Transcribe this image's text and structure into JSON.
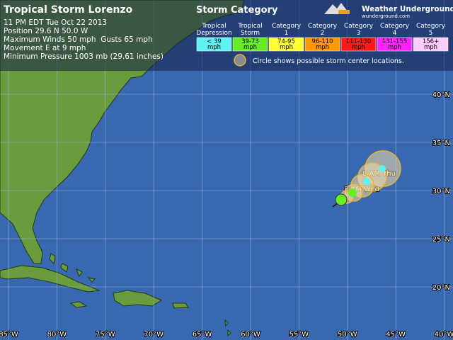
{
  "header": {
    "title": "Tropical Storm Lorenzo",
    "lines": [
      "11 PM EDT Tue Oct 22 2013",
      "Position 29.6 N 50.0 W",
      "Maximum Winds 50 mph  Gusts 65 mph",
      "Movement E at 9 mph",
      "Minimum Pressure 1003 mb (29.61 inches)"
    ]
  },
  "legend": {
    "title": "Storm Category",
    "categories": [
      {
        "name": [
          "Tropical",
          "Depression"
        ],
        "range": [
          "< 39",
          "mph"
        ],
        "color": "#5ff2f2"
      },
      {
        "name": [
          "Tropical",
          "Storm"
        ],
        "range": [
          "39-73",
          "mph"
        ],
        "color": "#66ee22"
      },
      {
        "name": [
          "Category",
          "1"
        ],
        "range": [
          "74-95",
          "mph"
        ],
        "color": "#ffff33"
      },
      {
        "name": [
          "Category",
          "2"
        ],
        "range": [
          "96-110",
          "mph"
        ],
        "color": "#ff9900"
      },
      {
        "name": [
          "Category",
          "3"
        ],
        "range": [
          "111-130",
          "mph"
        ],
        "color": "#ff1a1a"
      },
      {
        "name": [
          "Category",
          "4"
        ],
        "range": [
          "131-155",
          "mph"
        ],
        "color": "#ff22ff"
      },
      {
        "name": [
          "Category",
          "5"
        ],
        "range": [
          "156+",
          "mph"
        ],
        "color": "#ffccff"
      }
    ],
    "note": "Circle shows possible storm center locations."
  },
  "logo": {
    "name": "Weather Underground",
    "url": "wunderground.com"
  },
  "map": {
    "latitudes": [
      "40°N",
      "35°N",
      "30°N",
      "25°N",
      "20°N"
    ],
    "longitudes": [
      "85°W",
      "80°W",
      "75°W",
      "70°W",
      "65°W",
      "60°W",
      "55°W",
      "50°W",
      "45°W",
      "40°W"
    ],
    "track_labels": [
      "TS",
      "8 AM Wed",
      "8 AM Thu"
    ]
  }
}
